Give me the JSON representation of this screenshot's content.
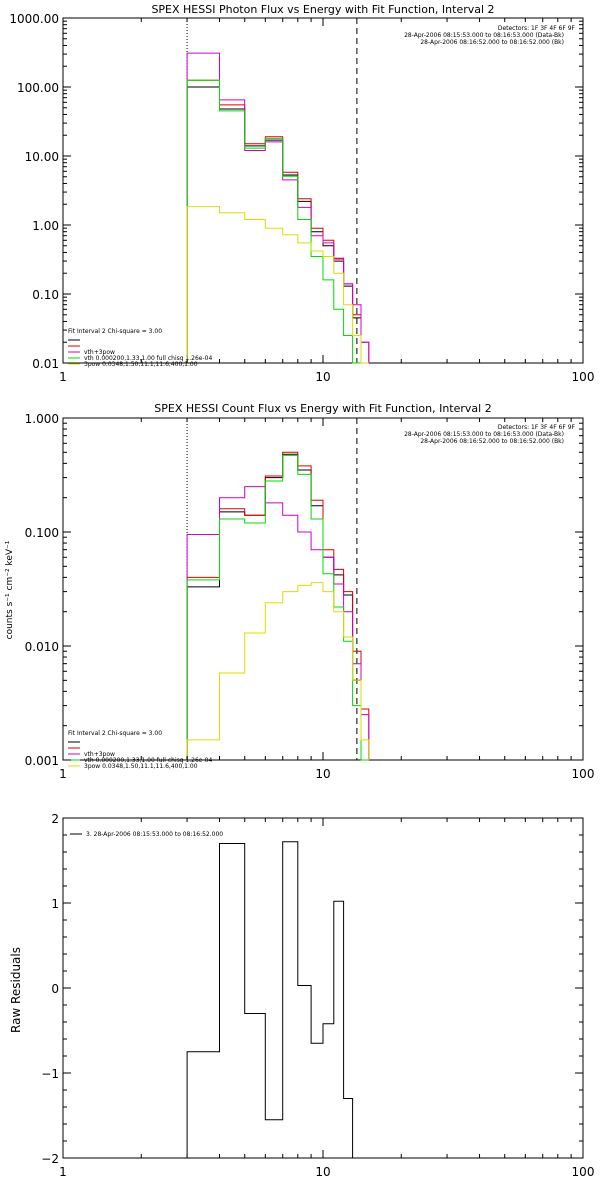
{
  "chart_data": [
    {
      "type": "line",
      "title": "SPEX HESSI Photon Flux vs Energy with Fit Function, Interval 2",
      "xlim": [
        1,
        100
      ],
      "ylim": [
        0.01,
        1000
      ],
      "xscale": "log",
      "yscale": "log",
      "x_ticks": [
        "1",
        "10",
        "100"
      ],
      "y_ticks": [
        "0.01",
        "0.10",
        "1.00",
        "10.00",
        "100.00",
        "1000.00"
      ],
      "header": [
        "Detectors: 1F 3F 4F 6F 9F",
        "28-Apr-2006 08:15:53.000 to 08:16:53.000 (Data-Bk)",
        "28-Apr-2006 08:16:52.000 to 08:16:52.000 (Bk)"
      ],
      "legend_title": "Fit Interval 2   Chi-square = 3.00",
      "legend_position": "lower-left",
      "vlines": [
        {
          "x": 3.0,
          "style": "dotted"
        },
        {
          "x": 13.5,
          "style": "dashed"
        }
      ],
      "edges": [
        3.0,
        4.0,
        5.0,
        6.0,
        7.0,
        8.0,
        9.0,
        10.0,
        11.0,
        12.0,
        13.0,
        14.0,
        15.0
      ],
      "series": [
        {
          "name": "",
          "color": "#000000",
          "values": [
            100,
            48,
            14,
            17,
            5.3,
            2.2,
            0.8,
            0.5,
            0.3,
            0.13,
            0.045
          ]
        },
        {
          "name": "",
          "color": "#dd0000",
          "values": [
            125,
            55,
            15,
            19,
            5.8,
            2.4,
            0.9,
            0.6,
            0.33,
            0.14,
            0.05,
            0.02
          ]
        },
        {
          "name": "vth+3pow",
          "color": "#d000d0",
          "values": [
            310,
            65,
            12,
            16,
            4.5,
            1.8,
            0.7,
            0.55,
            0.32,
            0.14,
            0.07,
            0.02
          ]
        },
        {
          "name": "vth 0.000200,1.33,1.00   full chisq 1.26e-04",
          "color": "#00dd00",
          "values": [
            125,
            45,
            13,
            18,
            5.1,
            1.2,
            0.35,
            0.16,
            0.06,
            0.025,
            0.01
          ]
        },
        {
          "name": "3pow 0.0348,1.50,11.1,11.6,400,1.00",
          "color": "#dddd00",
          "values": [
            1.85,
            1.5,
            1.2,
            0.9,
            0.72,
            0.55,
            0.42,
            0.35,
            0.2,
            0.07,
            0.025,
            0.01
          ]
        }
      ]
    },
    {
      "type": "line",
      "title": "SPEX HESSI Count Flux vs Energy with Fit Function, Interval 2",
      "ylabel": "counts s⁻¹ cm⁻² keV⁻¹",
      "xlim": [
        1,
        100
      ],
      "ylim": [
        0.001,
        1
      ],
      "xscale": "log",
      "yscale": "log",
      "x_ticks": [
        "1",
        "10",
        "100"
      ],
      "y_ticks": [
        "0.001",
        "0.010",
        "0.100",
        "1.000"
      ],
      "header": [
        "Detectors: 1F 3F 4F 6F 9F",
        "28-Apr-2006 08:15:53.000 to 08:16:53.000 (Data-Bk)",
        "28-Apr-2006 08:16:52.000 to 08:16:52.000 (Bk)"
      ],
      "legend_title": "Fit Interval 2   Chi-square = 3.00",
      "legend_position": "lower-left",
      "vlines": [
        {
          "x": 3.0,
          "style": "dotted"
        },
        {
          "x": 13.5,
          "style": "dashed"
        }
      ],
      "edges": [
        3.0,
        4.0,
        5.0,
        6.0,
        7.0,
        8.0,
        9.0,
        10.0,
        11.0,
        12.0,
        13.0,
        14.0,
        15.0
      ],
      "series": [
        {
          "name": "",
          "color": "#000000",
          "values": [
            0.033,
            0.15,
            0.14,
            0.3,
            0.48,
            0.35,
            0.17,
            0.06,
            0.042,
            0.028,
            0.005
          ]
        },
        {
          "name": "",
          "color": "#dd0000",
          "values": [
            0.04,
            0.16,
            0.14,
            0.31,
            0.5,
            0.38,
            0.19,
            0.07,
            0.047,
            0.03,
            0.009,
            0.0028
          ]
        },
        {
          "name": "vth+3pow",
          "color": "#d000d0",
          "values": [
            0.095,
            0.2,
            0.25,
            0.18,
            0.14,
            0.1,
            0.07,
            0.06,
            0.035,
            0.02,
            0.007,
            0.0025
          ]
        },
        {
          "name": "vth 0.000200,1.33,1.00   full chisq 1.26e-04",
          "color": "#00dd00",
          "values": [
            0.038,
            0.13,
            0.12,
            0.28,
            0.47,
            0.32,
            0.13,
            0.043,
            0.022,
            0.011,
            0.003,
            0.001
          ]
        },
        {
          "name": "3pow 0.0348,1.50,11.1,11.6,400,1.00",
          "color": "#dddd00",
          "values": [
            0.0015,
            0.0058,
            0.013,
            0.024,
            0.03,
            0.034,
            0.036,
            0.03,
            0.02,
            0.012,
            0.005,
            0.0015
          ]
        }
      ]
    },
    {
      "type": "line",
      "title": "",
      "ylabel": "Raw Residuals",
      "xlim": [
        1,
        100
      ],
      "ylim": [
        -2,
        2
      ],
      "xscale": "log",
      "yscale": "linear",
      "x_ticks": [
        "1",
        "10",
        "100"
      ],
      "y_ticks": [
        "-2",
        "-1",
        "0",
        "1",
        "2"
      ],
      "legend_position": "top-left",
      "edges": [
        3.0,
        4.0,
        5.0,
        6.0,
        7.0,
        8.0,
        9.0,
        10.0,
        11.0,
        12.0,
        13.0
      ],
      "series": [
        {
          "name": "3. 28-Apr-2006 08:15:53.000 to 08:16:52.000",
          "color": "#000000",
          "values": [
            -0.75,
            1.7,
            -0.3,
            -1.55,
            1.72,
            0.03,
            -0.65,
            -0.42,
            1.02,
            -1.3
          ]
        }
      ]
    }
  ]
}
